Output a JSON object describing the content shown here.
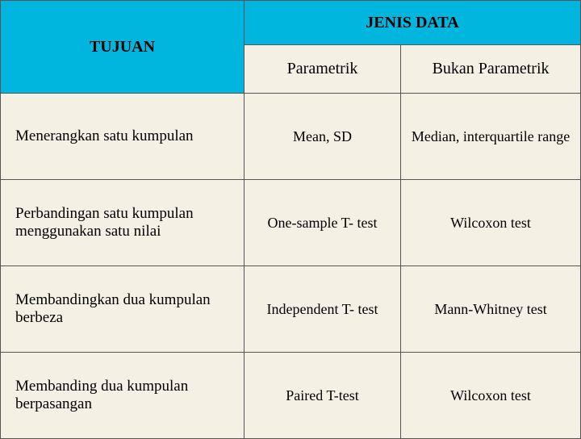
{
  "table": {
    "header": {
      "tujuan": "TUJUAN",
      "jenis_data": "JENIS DATA",
      "parametrik": "Parametrik",
      "bukan_parametrik": "Bukan Parametrik"
    },
    "rows": [
      {
        "tujuan": "Menerangkan satu kumpulan",
        "param": "Mean, SD",
        "nonparam": "Median, interquartile range"
      },
      {
        "tujuan": "Perbandingan satu kumpulan menggunakan satu nilai",
        "param": "One-sample T- test",
        "nonparam": "Wilcoxon test"
      },
      {
        "tujuan": "Membandingkan dua kumpulan berbeza",
        "param": "Independent T- test",
        "nonparam": "Mann-Whitney test"
      },
      {
        "tujuan": "Membanding dua kumpulan berpasangan",
        "param": "Paired T-test",
        "nonparam": "Wilcoxon test"
      }
    ],
    "colors": {
      "header_bg": "#00b6de",
      "body_bg": "#f4f0e4",
      "border": "#555555",
      "text": "#000000"
    },
    "column_widths_pct": [
      42,
      27,
      31
    ],
    "fonts": {
      "family": "Georgia, serif",
      "header_size_pt": 20,
      "body_size_pt": 18
    }
  }
}
